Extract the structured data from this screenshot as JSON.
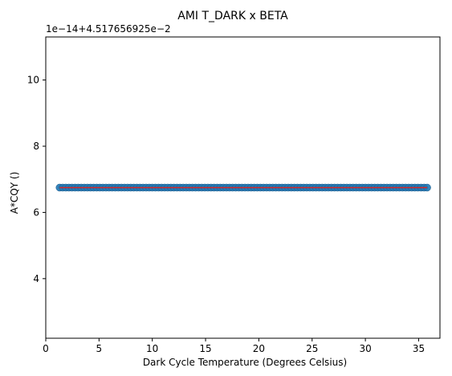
{
  "chart_data": {
    "type": "scatter",
    "title": "AMI T_DARK x BETA",
    "xlabel": "Dark Cycle Temperature (Degrees Celsius)",
    "ylabel": "A*CQY ()",
    "y_offset_label": "1e−14+4.517656925e−2",
    "xlim": [
      0,
      37
    ],
    "ylim": [
      2.2,
      11.3
    ],
    "x_ticks": [
      0,
      5,
      10,
      15,
      20,
      25,
      30,
      35
    ],
    "x_tick_labels": [
      "0",
      "5",
      "10",
      "15",
      "20",
      "25",
      "30",
      "35"
    ],
    "y_ticks": [
      4,
      6,
      8,
      10
    ],
    "y_tick_labels": [
      "4",
      "6",
      "8",
      "10"
    ],
    "grid": false,
    "point_color": "#1f77b4",
    "fit_line_color": "#d62728",
    "series": [
      {
        "x_start": 1.3,
        "x_end": 35.8,
        "count": 120,
        "y": 6.75
      }
    ],
    "fit_line": {
      "x": [
        1.3,
        35.8
      ],
      "y": [
        6.75,
        6.75
      ]
    }
  }
}
